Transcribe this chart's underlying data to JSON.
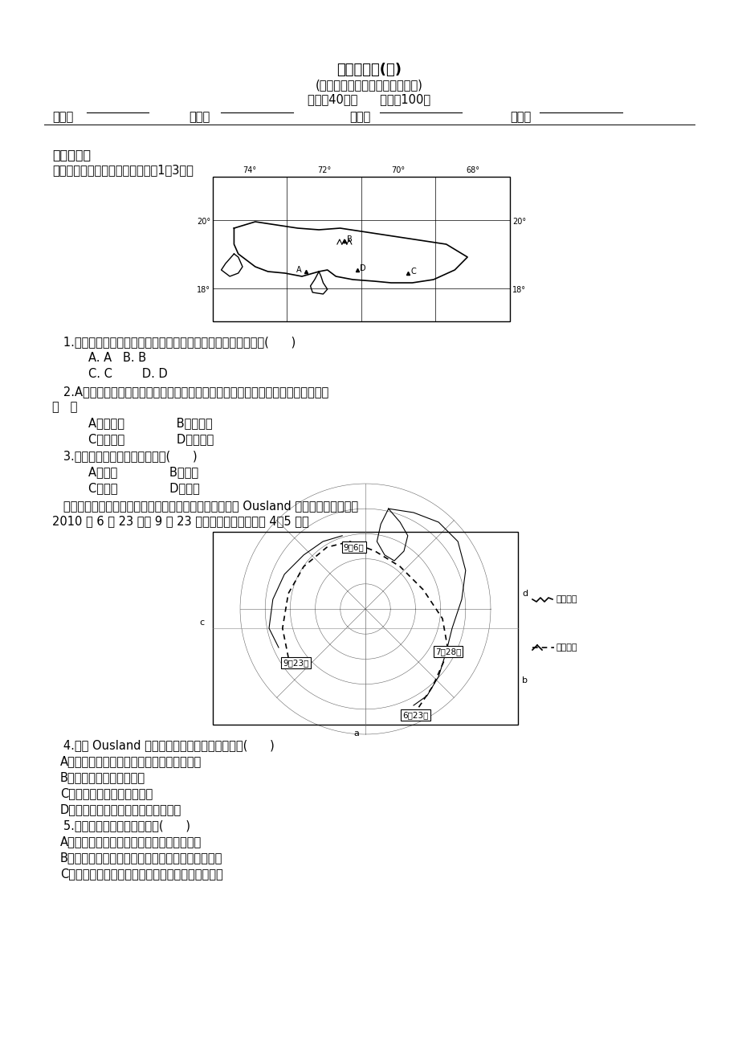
{
  "title1": "复习检测卷(八)",
  "title2": "(考试范围：世界地理、中国地理)",
  "title3": "时量：40分钟      满分：100分",
  "section1": "一、选择题",
  "intro1": "下图是某小岛示意图，读图，完成1～3题。",
  "q1": "   1.根据图中岛屿的地理位置和山脉走向分析，降水最多的城市是(      )",
  "q1a": "A. A   B. B",
  "q1b": "C. C        D. D",
  "q2_line1": "   2.A城市若建一个水泥厂，从保护城市大气环境考虑，厂址最佳位置应位于该城市的",
  "q2_line2": "（   ）",
  "q2a": "A．西南郊              B．东南郊",
  "q2b": "C．东北郊              D．西北郊",
  "q3": "   3.该岛屿适宜种植的经济作物是(      )",
  "q3a": "A．甘蔗              B．水稻",
  "q3b": "C．棉花              D．甜菜",
  "intro2_1": "   由于北极冰加速消融，北极不再寂静。下图为挪威探险家 Ousland 为见证北极冰消融于",
  "intro2_2": "2010 年 6 月 23 日到 9 月 23 日的航线。读图，完成 4～5 题。",
  "q4": "   4.关于 Ousland 在此次航行中的叙述，可信的是(      )",
  "q4a": "A．从甲到乙的探险途中遇到了大量浮冰威胁",
  "q4b": "B．大部分行程是顺风航行",
  "q4c": "C．沿途不断遇到大型运矿船",
  "q4d": "D．看到漂浮海冰上的北极熊同伴相残",
  "q5": "   5.北极不再寂静的主要原因是(      )",
  "q5a": "A．北极航线的开辟，海底资源的大规模开发",
  "q5b": "B．世界各国为争夺海洋资源发生了不同程度的冲突",
  "q5c": "C．北极考察等活动急剧增多，打破了原生态的平静",
  "background_color": "#ffffff"
}
